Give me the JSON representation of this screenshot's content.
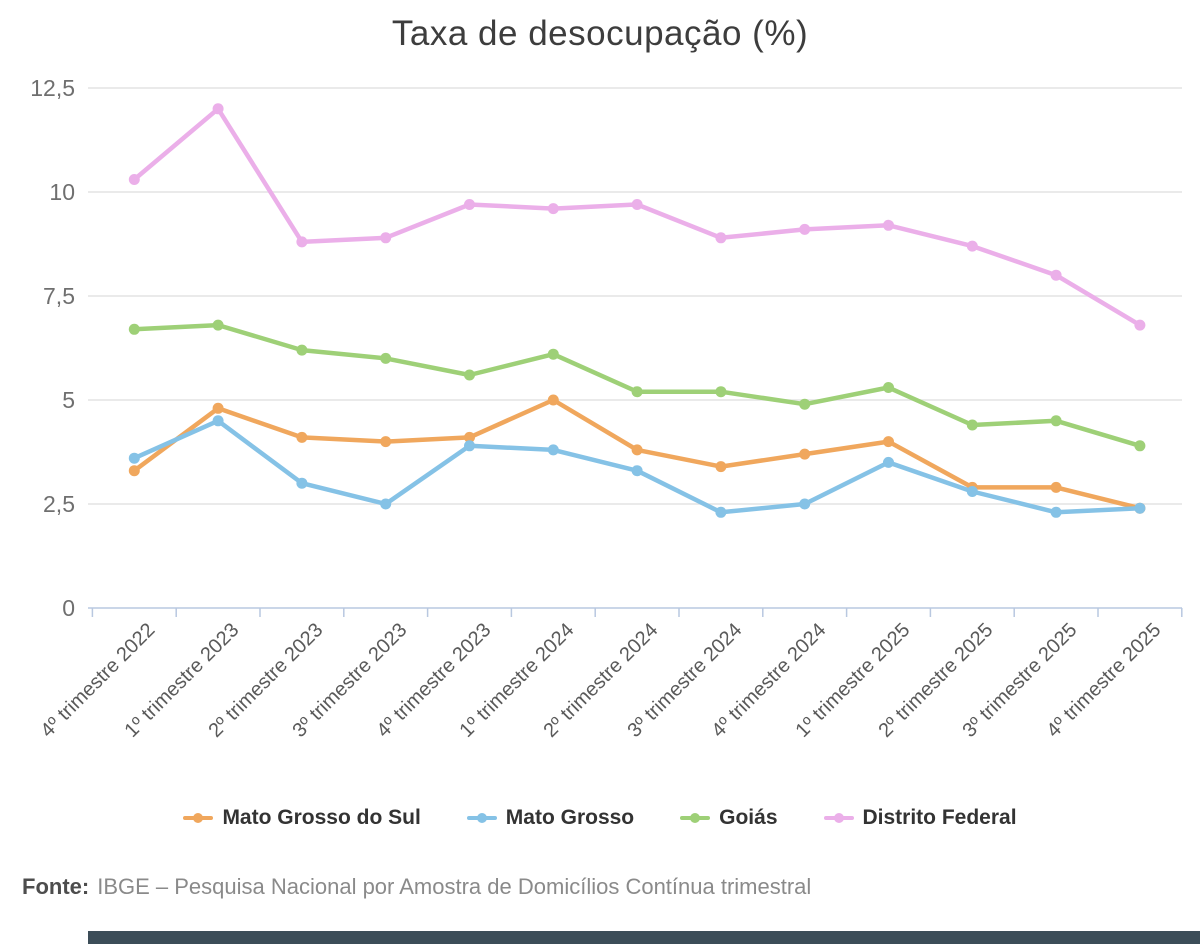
{
  "title": "Taxa de desocupação (%)",
  "source": {
    "label": "Fonte:",
    "text": "IBGE – Pesquisa Nacional por Amostra de Domicílios Contínua trimestral"
  },
  "colors": {
    "background": "#ffffff",
    "grid": "#e4e4e4",
    "axis": "#b9c8e0",
    "y_tick_label": "#6f6f6f",
    "x_tick_label": "#5a5a5a",
    "title_text": "#3d3d3d",
    "legend_text": "#333333",
    "source_text": "#8a8a8a",
    "bottom_bar": "#3c4d58"
  },
  "chart_data": {
    "type": "line",
    "title": "Taxa de desocupação (%)",
    "xlabel": "",
    "ylabel": "",
    "ylim": [
      0,
      12.5
    ],
    "grid": true,
    "legend_position": "bottom",
    "yticks": [
      {
        "value": 0,
        "label": "0"
      },
      {
        "value": 2.5,
        "label": "2,5"
      },
      {
        "value": 5,
        "label": "5"
      },
      {
        "value": 7.5,
        "label": "7,5"
      },
      {
        "value": 10,
        "label": "10"
      },
      {
        "value": 12.5,
        "label": "12,5"
      }
    ],
    "categories": [
      "4º trimestre 2022",
      "1º trimestre 2023",
      "2º trimestre 2023",
      "3º trimestre 2023",
      "4º trimestre 2023",
      "1º trimestre 2024",
      "2º trimestre 2024",
      "3º trimestre 2024",
      "4º trimestre 2024",
      "1º trimestre 2025",
      "2º trimestre 2025",
      "3º trimestre 2025",
      "4º trimestre 2025"
    ],
    "series": [
      {
        "name": "Mato Grosso do Sul",
        "color": "#f0a75d",
        "values": [
          3.3,
          4.8,
          4.1,
          4.0,
          4.1,
          5.0,
          3.8,
          3.4,
          3.7,
          4.0,
          2.9,
          2.9,
          2.4
        ]
      },
      {
        "name": "Mato Grosso",
        "color": "#85c2e6",
        "values": [
          3.6,
          4.5,
          3.0,
          2.5,
          3.9,
          3.8,
          3.3,
          2.3,
          2.5,
          3.5,
          2.8,
          2.3,
          2.4
        ]
      },
      {
        "name": "Goiás",
        "color": "#9ed077",
        "values": [
          6.7,
          6.8,
          6.2,
          6.0,
          5.6,
          6.1,
          5.2,
          5.2,
          4.9,
          5.3,
          4.4,
          4.5,
          3.9
        ]
      },
      {
        "name": "Distrito Federal",
        "color": "#ebafe9",
        "values": [
          10.3,
          12.0,
          8.8,
          8.9,
          9.7,
          9.6,
          9.7,
          8.9,
          9.1,
          9.2,
          8.7,
          8.0,
          6.8
        ]
      }
    ]
  }
}
